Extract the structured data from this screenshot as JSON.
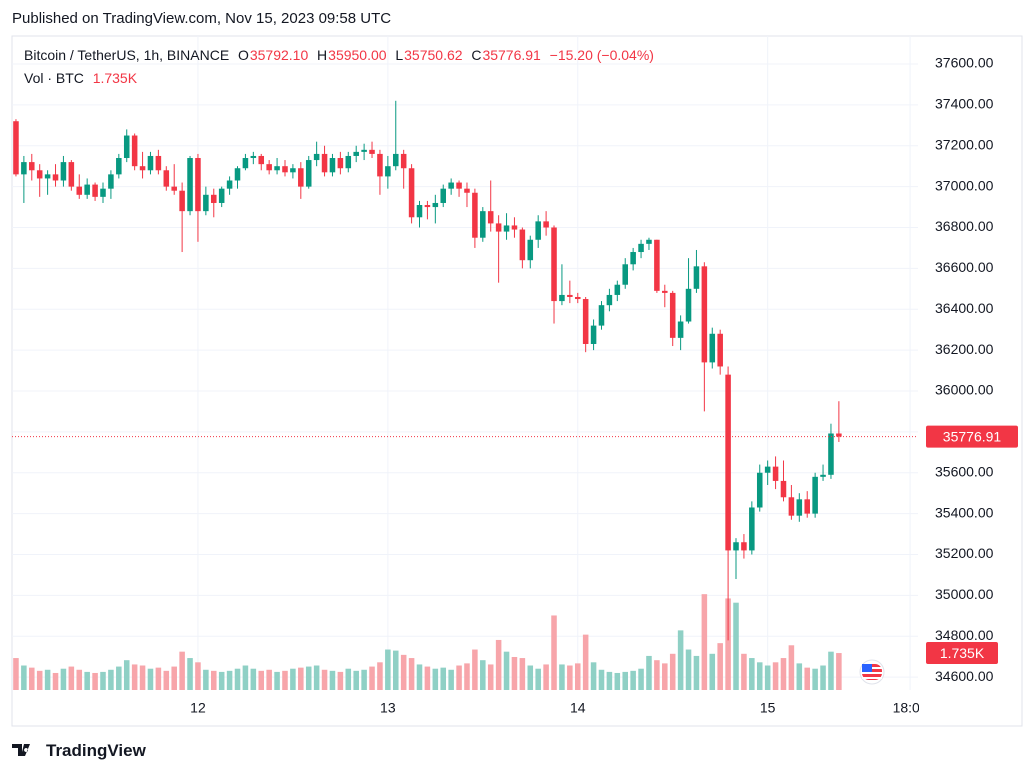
{
  "header": "Published on TradingView.com, Nov 15, 2023 09:58 UTC",
  "footer": "TradingView",
  "chart_data": {
    "type": "candlestick",
    "title": "Bitcoin / TetherUS, 1h, BINANCE",
    "legend": {
      "o_label": "O",
      "open": "35792.10",
      "h_label": "H",
      "high": "35950.00",
      "l_label": "L",
      "low": "35750.62",
      "c_label": "C",
      "close": "35776.91",
      "change": "−15.20 (−0.04%)",
      "volume_label": "Vol · BTC",
      "volume": "1.735K"
    },
    "up_color": "#089981",
    "down_color": "#f23645",
    "volume_up_color": "#8fd0c5",
    "volume_down_color": "#f7a5aa",
    "x": [
      -23,
      -22,
      -21,
      -20,
      -19,
      -18,
      -17,
      -16,
      -15,
      -14,
      -13,
      -12,
      -11,
      -10,
      -9,
      -8,
      -7,
      -6,
      -5,
      -4,
      -3,
      -2,
      -1,
      0,
      1,
      2,
      3,
      4,
      5,
      6,
      7,
      8,
      9,
      10,
      11,
      12,
      13,
      14,
      15,
      16,
      17,
      18,
      19,
      20,
      21,
      22,
      23,
      24,
      25,
      26,
      27,
      28,
      29,
      30,
      31,
      32,
      33,
      34,
      35,
      36,
      37,
      38,
      39,
      40,
      41,
      42,
      43,
      44,
      45,
      46,
      47,
      48,
      49,
      50,
      51,
      52,
      53,
      54,
      55,
      56,
      57,
      58,
      59,
      60,
      61,
      62,
      63,
      64,
      65,
      66,
      67,
      68,
      69,
      70,
      71,
      72,
      73,
      74,
      75,
      76,
      77,
      78,
      79,
      80,
      81
    ],
    "open": [
      37320,
      37060,
      37120,
      37080,
      37040,
      37060,
      37030,
      37120,
      37000,
      36960,
      37010,
      36950,
      36990,
      37060,
      37140,
      37250,
      37100,
      37080,
      37150,
      37080,
      37000,
      36980,
      36880,
      37140,
      36880,
      36960,
      36920,
      36990,
      37030,
      37090,
      37140,
      37150,
      37110,
      37080,
      37100,
      37070,
      37090,
      37000,
      37130,
      37160,
      37070,
      37140,
      37090,
      37150,
      37170,
      37180,
      37160,
      37050,
      37100,
      37160,
      37090,
      36850,
      36910,
      36900,
      36920,
      36990,
      37020,
      36990,
      36970,
      36750,
      36880,
      36820,
      36780,
      36810,
      36790,
      36640,
      36740,
      36830,
      36800,
      36440,
      36470,
      36460,
      36450,
      36230,
      36320,
      36420,
      36470,
      36520,
      36620,
      36680,
      36720,
      36740,
      36490,
      36480,
      36260,
      36340,
      36500,
      36610,
      36140,
      36280,
      36080,
      35220,
      35260,
      35220,
      35430,
      35600,
      35630,
      35560,
      35480,
      35390,
      35470,
      35400,
      35580,
      35590,
      35792.1
    ],
    "high": [
      37330,
      37150,
      37160,
      37110,
      37080,
      37110,
      37150,
      37130,
      37060,
      37040,
      37020,
      37020,
      37080,
      37160,
      37280,
      37260,
      37170,
      37170,
      37180,
      37100,
      37110,
      37020,
      37150,
      37160,
      37000,
      36990,
      37000,
      37050,
      37100,
      37160,
      37170,
      37160,
      37130,
      37140,
      37130,
      37110,
      37120,
      37150,
      37220,
      37200,
      37160,
      37170,
      37170,
      37200,
      37210,
      37220,
      37180,
      37150,
      37420,
      37180,
      37110,
      36930,
      36930,
      36960,
      37010,
      37040,
      37030,
      37020,
      36990,
      36900,
      37030,
      36860,
      36870,
      36850,
      36800,
      36760,
      36860,
      36880,
      36810,
      36620,
      36540,
      36480,
      36460,
      36350,
      36440,
      36500,
      36540,
      36650,
      36700,
      36740,
      36750,
      36740,
      36520,
      36490,
      36370,
      36650,
      36690,
      36630,
      36310,
      36300,
      36120,
      35280,
      35300,
      35460,
      35640,
      35660,
      35680,
      35660,
      35540,
      35500,
      35510,
      35600,
      35640,
      35840,
      35950.0
    ],
    "low": [
      37050,
      36920,
      37030,
      36950,
      36960,
      37000,
      37000,
      36980,
      36940,
      36940,
      36930,
      36920,
      36940,
      37040,
      37120,
      37080,
      37040,
      37060,
      37060,
      36980,
      36960,
      36680,
      36860,
      36730,
      36860,
      36850,
      36900,
      36960,
      36990,
      37080,
      37110,
      37080,
      37060,
      37060,
      37050,
      37040,
      36940,
      36990,
      37100,
      37050,
      37050,
      37060,
      37070,
      37120,
      37130,
      37140,
      36960,
      36990,
      37080,
      36990,
      36820,
      36800,
      36840,
      36820,
      36900,
      36960,
      36950,
      36900,
      36700,
      36730,
      36780,
      36530,
      36740,
      36750,
      36600,
      36600,
      36700,
      36760,
      36330,
      36420,
      36430,
      36430,
      36190,
      36200,
      36300,
      36390,
      36440,
      36500,
      36590,
      36650,
      36690,
      36480,
      36410,
      36220,
      36200,
      36330,
      36480,
      35900,
      36110,
      36080,
      34780,
      35080,
      35180,
      35200,
      35410,
      35540,
      35520,
      35460,
      35370,
      35360,
      35380,
      35380,
      35560,
      35570,
      35750.62
    ],
    "close": [
      37060,
      37120,
      37080,
      37040,
      37060,
      37030,
      37120,
      37000,
      36960,
      37010,
      36950,
      36990,
      37060,
      37140,
      37250,
      37100,
      37080,
      37150,
      37080,
      37000,
      36980,
      36880,
      37140,
      36880,
      36960,
      36920,
      36990,
      37030,
      37090,
      37140,
      37150,
      37110,
      37080,
      37100,
      37070,
      37090,
      37000,
      37130,
      37160,
      37070,
      37140,
      37090,
      37150,
      37170,
      37180,
      37160,
      37050,
      37100,
      37160,
      37090,
      36850,
      36910,
      36900,
      36920,
      36990,
      37020,
      36990,
      36970,
      36750,
      36880,
      36820,
      36780,
      36810,
      36790,
      36640,
      36740,
      36830,
      36800,
      36440,
      36470,
      36460,
      36450,
      36230,
      36320,
      36420,
      36470,
      36520,
      36620,
      36680,
      36720,
      36740,
      36490,
      36480,
      36260,
      36340,
      36500,
      36610,
      36140,
      36280,
      36120,
      35220,
      35260,
      35220,
      35430,
      35600,
      35630,
      35560,
      35480,
      35390,
      35470,
      35400,
      35580,
      35590,
      35792.1,
      35776.91
    ],
    "volume": [
      1500,
      1150,
      1050,
      900,
      950,
      800,
      1000,
      1100,
      950,
      850,
      800,
      850,
      950,
      1100,
      1400,
      1200,
      1150,
      1000,
      1050,
      900,
      1100,
      1800,
      1500,
      1300,
      950,
      900,
      850,
      900,
      1000,
      1150,
      1000,
      900,
      950,
      850,
      900,
      1000,
      1050,
      1100,
      1150,
      950,
      900,
      850,
      1000,
      900,
      950,
      1100,
      1300,
      1900,
      1850,
      1650,
      1500,
      1200,
      1100,
      1000,
      1050,
      950,
      1150,
      1250,
      1900,
      1400,
      1200,
      2350,
      1800,
      1550,
      1500,
      1150,
      1000,
      1200,
      3500,
      1200,
      1150,
      1250,
      2600,
      1300,
      950,
      850,
      800,
      850,
      900,
      1000,
      1600,
      1400,
      1250,
      1700,
      2800,
      1900,
      1600,
      4500,
      1700,
      2200,
      4300,
      4100,
      1700,
      1500,
      1300,
      1150,
      1300,
      1500,
      2100,
      1250,
      1050,
      1000,
      1150,
      1800,
      1735
    ],
    "xlim": [
      -23.5,
      91
    ],
    "xticks": [
      {
        "value": 0,
        "label": "12"
      },
      {
        "value": 24,
        "label": "13"
      },
      {
        "value": 48,
        "label": "14"
      },
      {
        "value": 72,
        "label": "15"
      },
      {
        "value": 90,
        "label": "18:00"
      }
    ],
    "ylim": [
      34537,
      37737
    ],
    "yticks": [
      {
        "value": 34600,
        "label": "34600.00"
      },
      {
        "value": 34800,
        "label": "34800.00"
      },
      {
        "value": 35000,
        "label": "35000.00"
      },
      {
        "value": 35200,
        "label": "35200.00"
      },
      {
        "value": 35400,
        "label": "35400.00"
      },
      {
        "value": 35600,
        "label": "35600.00"
      },
      {
        "value": 35800,
        "label": "35800.00"
      },
      {
        "value": 36000,
        "label": "36000.00"
      },
      {
        "value": 36200,
        "label": "36200.00"
      },
      {
        "value": 36400,
        "label": "36400.00"
      },
      {
        "value": 36600,
        "label": "36600.00"
      },
      {
        "value": 36800,
        "label": "36800.00"
      },
      {
        "value": 37000,
        "label": "37000.00"
      },
      {
        "value": 37200,
        "label": "37200.00"
      },
      {
        "value": 37400,
        "label": "37400.00"
      },
      {
        "value": 37600,
        "label": "37600.00"
      }
    ],
    "volume_ylim": [
      0,
      10800
    ],
    "grid": true
  }
}
